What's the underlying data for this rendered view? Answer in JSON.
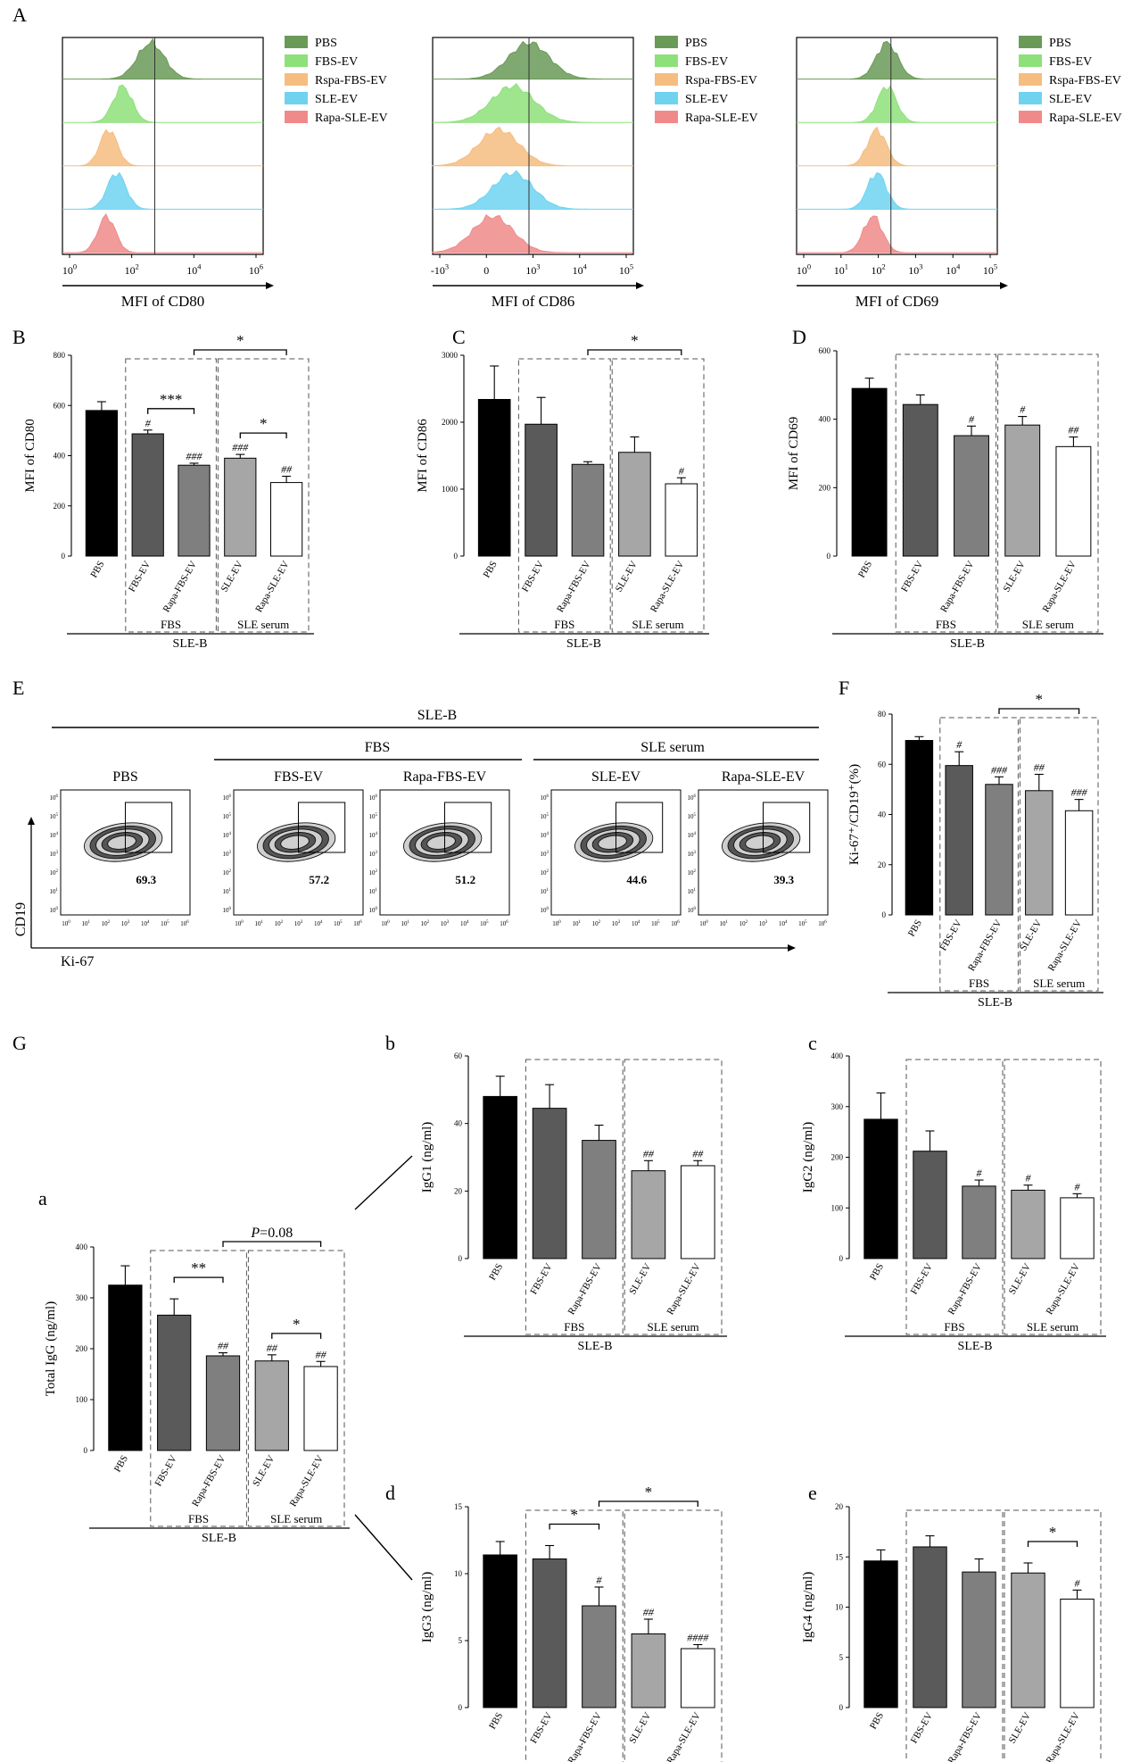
{
  "panel_letters": {
    "A": "A",
    "B": "B",
    "C": "C",
    "D": "D",
    "E": "E",
    "F": "F",
    "G": "G",
    "a": "a",
    "b": "b",
    "c": "c",
    "d": "d",
    "e": "e"
  },
  "group_labels": {
    "fbs": "FBS",
    "sle_serum": "SLE serum",
    "sle_b": "SLE-B"
  },
  "colors": {
    "PBS": "#000000",
    "FBS-EV": "#5a5a5a",
    "Rapa-FBS-EV": "#7f7f7f",
    "SLE-EV": "#a6a6a6",
    "Rapa-SLE-EV": "#ffffff"
  },
  "histograms": [
    {
      "xlabel": "MFI of CD80",
      "ticks": [
        "10^0",
        "10^2",
        "10^4",
        "10^6"
      ],
      "legend": [
        "PBS",
        "FBS-EV",
        "Rspa-FBS-EV",
        "SLE-EV",
        "Rapa-SLE-EV"
      ]
    },
    {
      "xlabel": "MFI of CD86",
      "ticks": [
        "-10^3",
        "0",
        "10^3",
        "10^4",
        "10^5"
      ],
      "legend": [
        "PBS",
        "FBS-EV",
        "Rspa-FBS-EV",
        "SLE-EV",
        "Rapa-SLE-EV"
      ]
    },
    {
      "xlabel": "MFI of CD69",
      "ticks": [
        "10^0",
        "10^1",
        "10^2",
        "10^3",
        "10^4",
        "10^5"
      ],
      "legend": [
        "PBS",
        "FBS-EV",
        "Rspa-FBS-EV",
        "SLE-EV",
        "Rapa-SLE-EV"
      ]
    }
  ],
  "histogram_colors": [
    "#6a9a58",
    "#8ee07a",
    "#f5bd80",
    "#6fd3f0",
    "#f08a8a"
  ],
  "flow": {
    "header": "SLE-B",
    "fbs_label": "FBS",
    "sle_label": "SLE serum",
    "ylabel": "CD19",
    "xlabel": "Ki-67",
    "tick_labels": [
      "10^0",
      "10^1",
      "10^2",
      "10^3",
      "10^4",
      "10^5",
      "10^6"
    ],
    "panels": [
      {
        "title": "PBS",
        "value": "69.3"
      },
      {
        "title": "FBS-EV",
        "value": "57.2"
      },
      {
        "title": "Rapa-FBS-EV",
        "value": "51.2"
      },
      {
        "title": "SLE-EV",
        "value": "44.6"
      },
      {
        "title": "Rapa-SLE-EV",
        "value": "39.3"
      }
    ]
  },
  "chart_data": [
    {
      "id": "B",
      "type": "bar",
      "ylabel": "MFI of CD80",
      "ylim": [
        0,
        800
      ],
      "yticks": [
        "0",
        "200",
        "400",
        "600",
        "800"
      ],
      "categories": [
        "PBS",
        "FBS-EV",
        "Rapa-FBS-EV",
        "SLE-EV",
        "Rapa-SLE-EV"
      ],
      "values": [
        580,
        487,
        362,
        390,
        293
      ],
      "errors": [
        35,
        15,
        8,
        15,
        25
      ],
      "marks": [
        "",
        "#",
        "###",
        "###",
        "##"
      ],
      "brackets": [
        {
          "from": 1,
          "to": 2,
          "label": "***"
        },
        {
          "from": 3,
          "to": 4,
          "label": "*"
        },
        {
          "from": 2,
          "to": 4,
          "label": "*"
        }
      ]
    },
    {
      "id": "C",
      "type": "bar",
      "ylabel": "MFI of CD86",
      "ylim": [
        0,
        3000
      ],
      "yticks": [
        "0",
        "1000",
        "2000",
        "3000"
      ],
      "categories": [
        "PBS",
        "FBS-EV",
        "Rapa-FBS-EV",
        "SLE-EV",
        "Rapa-SLE-EV"
      ],
      "values": [
        2340,
        1970,
        1370,
        1550,
        1080
      ],
      "errors": [
        500,
        400,
        40,
        230,
        90
      ],
      "marks": [
        "",
        "",
        "",
        "",
        "#"
      ],
      "brackets": [
        {
          "from": 2,
          "to": 4,
          "label": "*"
        }
      ]
    },
    {
      "id": "D",
      "type": "bar",
      "ylabel": "MFI of CD69",
      "ylim": [
        0,
        600
      ],
      "yticks": [
        "0",
        "200",
        "400",
        "600"
      ],
      "categories": [
        "PBS",
        "FBS-EV",
        "Rapa-FBS-EV",
        "SLE-EV",
        "Rapa-SLE-EV"
      ],
      "values": [
        490,
        443,
        352,
        383,
        320
      ],
      "errors": [
        30,
        28,
        28,
        25,
        28
      ],
      "marks": [
        "",
        "",
        "#",
        "#",
        "##"
      ],
      "brackets": []
    },
    {
      "id": "F",
      "type": "bar",
      "ylabel": "Ki-67⁺/CD19⁺(%)",
      "ylim": [
        0,
        80
      ],
      "yticks": [
        "0",
        "20",
        "40",
        "60",
        "80"
      ],
      "categories": [
        "PBS",
        "FBS-EV",
        "Rapa-FBS-EV",
        "SLE-EV",
        "Rapa-SLE-EV"
      ],
      "values": [
        69.5,
        59.5,
        52,
        49.5,
        41.5
      ],
      "errors": [
        1.5,
        5.5,
        3,
        6.5,
        4.5
      ],
      "marks": [
        "",
        "#",
        "###",
        "##",
        "###"
      ],
      "brackets": [
        {
          "from": 2,
          "to": 4,
          "label": "*"
        }
      ]
    },
    {
      "id": "Ga",
      "type": "bar",
      "ylabel": "Total IgG (ng/ml)",
      "ylim": [
        0,
        400
      ],
      "yticks": [
        "0",
        "100",
        "200",
        "300",
        "400"
      ],
      "categories": [
        "PBS",
        "FBS-EV",
        "Rapa-FBS-EV",
        "SLE-EV",
        "Rapa-SLE-EV"
      ],
      "values": [
        325,
        266,
        186,
        176,
        165
      ],
      "errors": [
        38,
        32,
        6,
        12,
        10
      ],
      "marks": [
        "",
        "",
        "##",
        "##",
        "##"
      ],
      "brackets": [
        {
          "from": 1,
          "to": 2,
          "label": "**"
        },
        {
          "from": 3,
          "to": 4,
          "label": "*"
        },
        {
          "from": 2,
          "to": 4,
          "label": "P=0.08"
        }
      ]
    },
    {
      "id": "Gb",
      "type": "bar",
      "ylabel": "IgG1 (ng/ml)",
      "ylim": [
        0,
        60
      ],
      "yticks": [
        "0",
        "20",
        "40",
        "60"
      ],
      "categories": [
        "PBS",
        "FBS-EV",
        "Rapa-FBS-EV",
        "SLE-EV",
        "Rapa-SLE-EV"
      ],
      "values": [
        48,
        44.5,
        35,
        26,
        27.5
      ],
      "errors": [
        6,
        7,
        4.5,
        3,
        1.5
      ],
      "marks": [
        "",
        "",
        "",
        "##",
        "##"
      ],
      "brackets": []
    },
    {
      "id": "Gc",
      "type": "bar",
      "ylabel": "IgG2 (ng/ml)",
      "ylim": [
        0,
        400
      ],
      "yticks": [
        "0",
        "100",
        "200",
        "300",
        "400"
      ],
      "categories": [
        "PBS",
        "FBS-EV",
        "Rapa-FBS-EV",
        "SLE-EV",
        "Rapa-SLE-EV"
      ],
      "values": [
        275,
        212,
        143,
        135,
        120
      ],
      "errors": [
        52,
        40,
        12,
        10,
        8
      ],
      "marks": [
        "",
        "",
        "#",
        "#",
        "#"
      ],
      "brackets": []
    },
    {
      "id": "Gd",
      "type": "bar",
      "ylabel": "IgG3 (ng/ml)",
      "ylim": [
        0,
        15
      ],
      "yticks": [
        "0",
        "5",
        "10",
        "15"
      ],
      "categories": [
        "PBS",
        "FBS-EV",
        "Rapa-FBS-EV",
        "SLE-EV",
        "Rapa-SLE-EV"
      ],
      "values": [
        11.4,
        11.1,
        7.6,
        5.5,
        4.4
      ],
      "errors": [
        1.0,
        1.0,
        1.4,
        1.1,
        0.3
      ],
      "marks": [
        "",
        "",
        "#",
        "##",
        "####"
      ],
      "brackets": [
        {
          "from": 1,
          "to": 2,
          "label": "*"
        },
        {
          "from": 2,
          "to": 4,
          "label": "*"
        }
      ]
    },
    {
      "id": "Ge",
      "type": "bar",
      "ylabel": "IgG4 (ng/ml)",
      "ylim": [
        0,
        20
      ],
      "yticks": [
        "0",
        "5",
        "10",
        "15",
        "20"
      ],
      "categories": [
        "PBS",
        "FBS-EV",
        "Rapa-FBS-EV",
        "SLE-EV",
        "Rapa-SLE-EV"
      ],
      "values": [
        14.6,
        16.0,
        13.5,
        13.4,
        10.8
      ],
      "errors": [
        1.1,
        1.1,
        1.3,
        1.0,
        0.9
      ],
      "marks": [
        "",
        "",
        "",
        "",
        "#"
      ],
      "brackets": [
        {
          "from": 3,
          "to": 4,
          "label": "*"
        }
      ]
    }
  ]
}
